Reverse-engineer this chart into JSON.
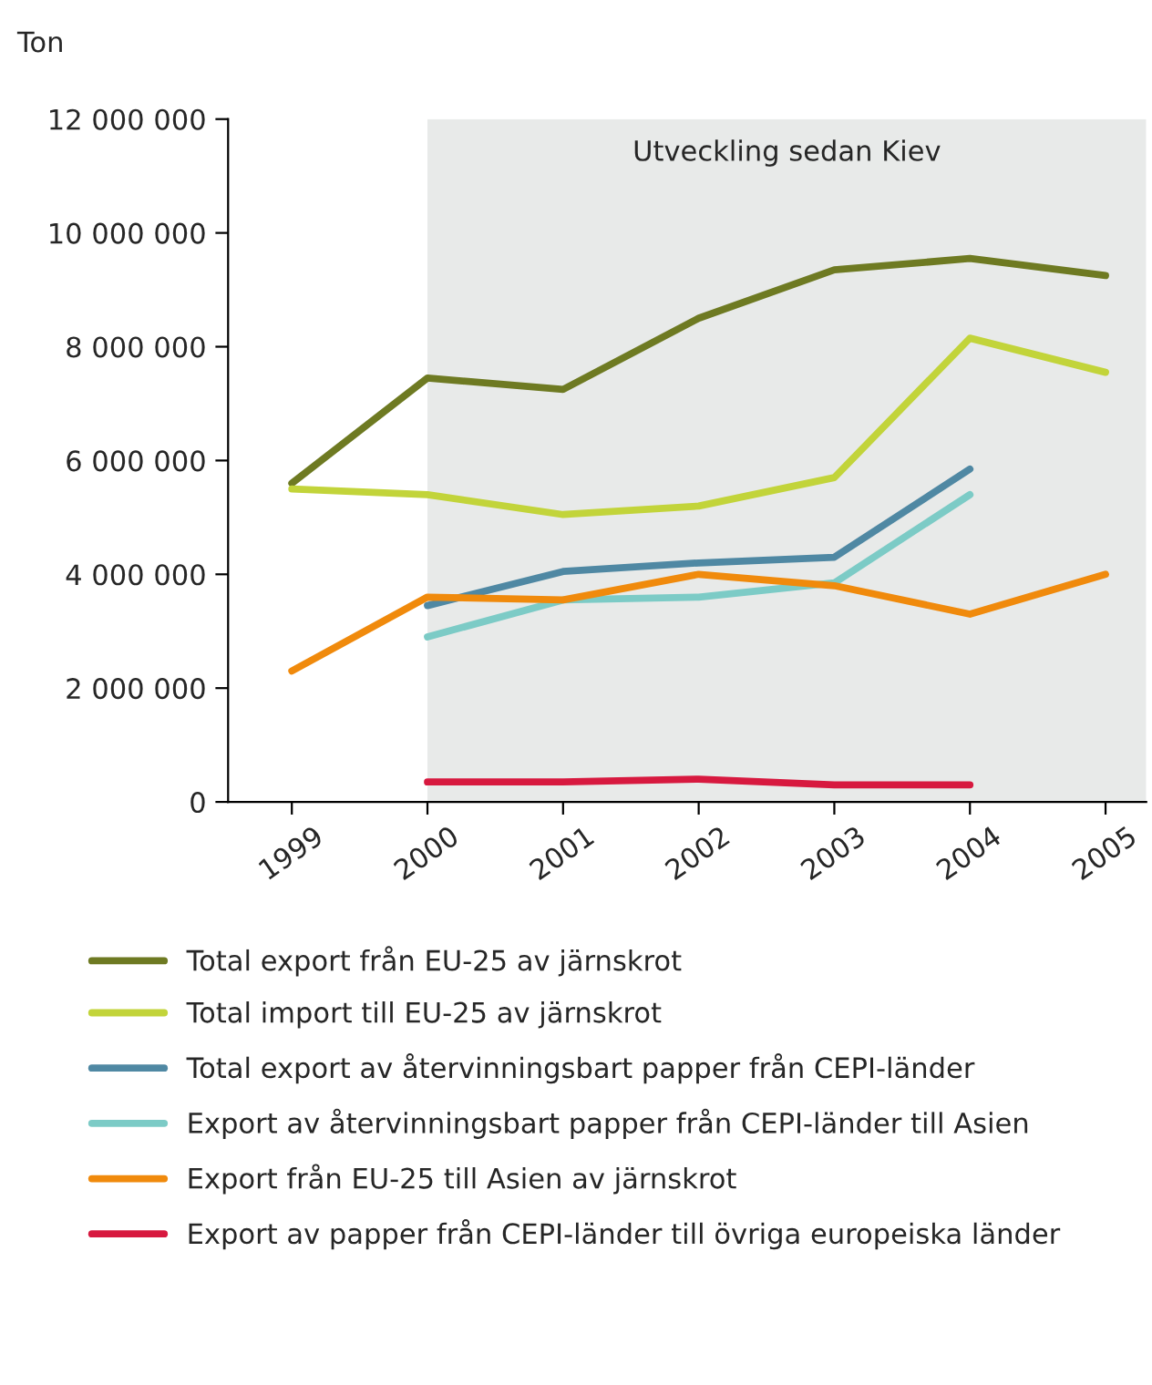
{
  "chart_data": {
    "type": "line",
    "ylabel": "Ton",
    "x": [
      1999,
      2000,
      2001,
      2002,
      2003,
      2004,
      2005
    ],
    "xlim": [
      1998.53,
      2005.3
    ],
    "xticks": [
      1999,
      2000,
      2001,
      2002,
      2003,
      2004,
      2005
    ],
    "ylim": [
      0,
      12000000
    ],
    "yticks": [
      {
        "value": 0,
        "label": "0"
      },
      {
        "value": 2000000,
        "label": "2 000 000"
      },
      {
        "value": 4000000,
        "label": "4 000 000"
      },
      {
        "value": 6000000,
        "label": "6 000 000"
      },
      {
        "value": 8000000,
        "label": "8 000 000"
      },
      {
        "value": 10000000,
        "label": "10 000 000"
      },
      {
        "value": 12000000,
        "label": "12 000 000"
      }
    ],
    "bands": [
      {
        "axis": "x",
        "from": 2000,
        "to": 2005.3,
        "label": "Utveckling sedan Kiev",
        "color": "#e8eae9"
      }
    ],
    "series": [
      {
        "name": "Total export från EU-25 av järnskrot",
        "color": "#6e7a22",
        "values": [
          5600000,
          7450000,
          7250000,
          8500000,
          9350000,
          9550000,
          9250000
        ]
      },
      {
        "name": "Total import till EU-25 av järnskrot",
        "color": "#c2d43a",
        "values": [
          5500000,
          5400000,
          5050000,
          5200000,
          5700000,
          8150000,
          7550000
        ]
      },
      {
        "name": "Total export av återvinningsbart papper från CEPI-länder",
        "color": "#4f88a3",
        "values": [
          null,
          3450000,
          4050000,
          4200000,
          4300000,
          5850000,
          null
        ]
      },
      {
        "name": "Export av återvinningsbart papper från CEPI-länder till Asien",
        "color": "#7ccbc6",
        "values": [
          null,
          2900000,
          3550000,
          3600000,
          3850000,
          5400000,
          null
        ]
      },
      {
        "name": "Export från EU-25 till Asien av järnskrot",
        "color": "#f08a0c",
        "values": [
          2300000,
          3600000,
          3550000,
          4000000,
          3800000,
          3300000,
          4000000
        ]
      },
      {
        "name": "Export av papper från CEPI-länder till övriga europeiska länder",
        "color": "#d7193f",
        "values": [
          null,
          350000,
          350000,
          400000,
          300000,
          300000,
          null
        ]
      }
    ],
    "legend": "bottom",
    "grid": false,
    "marker": "none",
    "line_style": "solid"
  }
}
